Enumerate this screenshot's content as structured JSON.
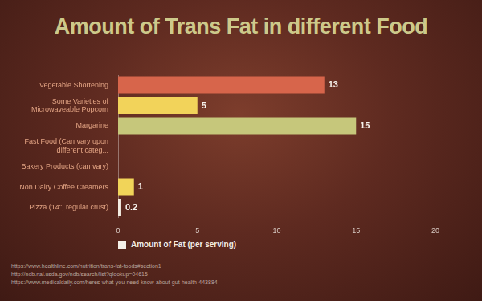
{
  "chart_data": {
    "type": "bar",
    "title": "Amount of Trans Fat in different Food",
    "orientation": "horizontal",
    "categories": [
      "Vegetable Shortening",
      "Some Varieties of Microwaveable Popcorn",
      "Margarine",
      "Fast Food (Can vary upon different categ...",
      "Bakery Products (can vary)",
      "Non Dairy Coffee Creamers",
      "Pizza (14\", regular crust)"
    ],
    "series": [
      {
        "name": "Amount of Fat (per serving)",
        "values": [
          13,
          5,
          15,
          null,
          null,
          1,
          0.2
        ],
        "colors": [
          "#d7654b",
          "#f2d35a",
          "#c6c77b",
          null,
          null,
          "#f1d459",
          "#f4ede2"
        ]
      }
    ],
    "xlim": [
      0,
      20
    ],
    "xticks": [
      0,
      5,
      10,
      15,
      20
    ],
    "grid": false,
    "data_labels": true,
    "legend": "bottom",
    "annotations": [
      "https://www.healthline.com/nutrition/trans-fat-foods#section1",
      "http://ndb.nal.usda.gov/ndb/search/list?qlookup=04615",
      "https://www.medicaldaily.com/heres-what-you-need-know-about-gut-health-443884"
    ]
  }
}
